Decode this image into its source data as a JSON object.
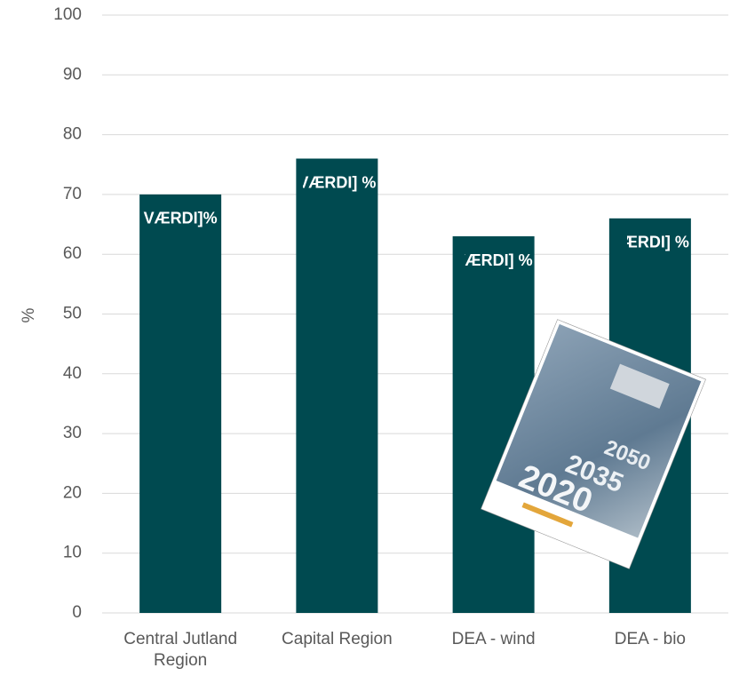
{
  "chart_data": {
    "type": "bar",
    "y_label": "%",
    "categories": [
      "Central Jutland Region",
      "Capital Region",
      "DEA - wind",
      "DEA - bio"
    ],
    "values": [
      70,
      76,
      63,
      66
    ],
    "value_labels": [
      "VÆRDI]%",
      "VÆRDI] %",
      "VÆRDI] %",
      "VÆRDI] %"
    ],
    "color": "#004a50",
    "ylim": [
      0,
      100
    ],
    "yticks": [
      0,
      10,
      20,
      30,
      40,
      50,
      60,
      70,
      80,
      90,
      100
    ],
    "grid": true,
    "inset_texts": [
      "2050",
      "2035",
      "2020"
    ]
  }
}
